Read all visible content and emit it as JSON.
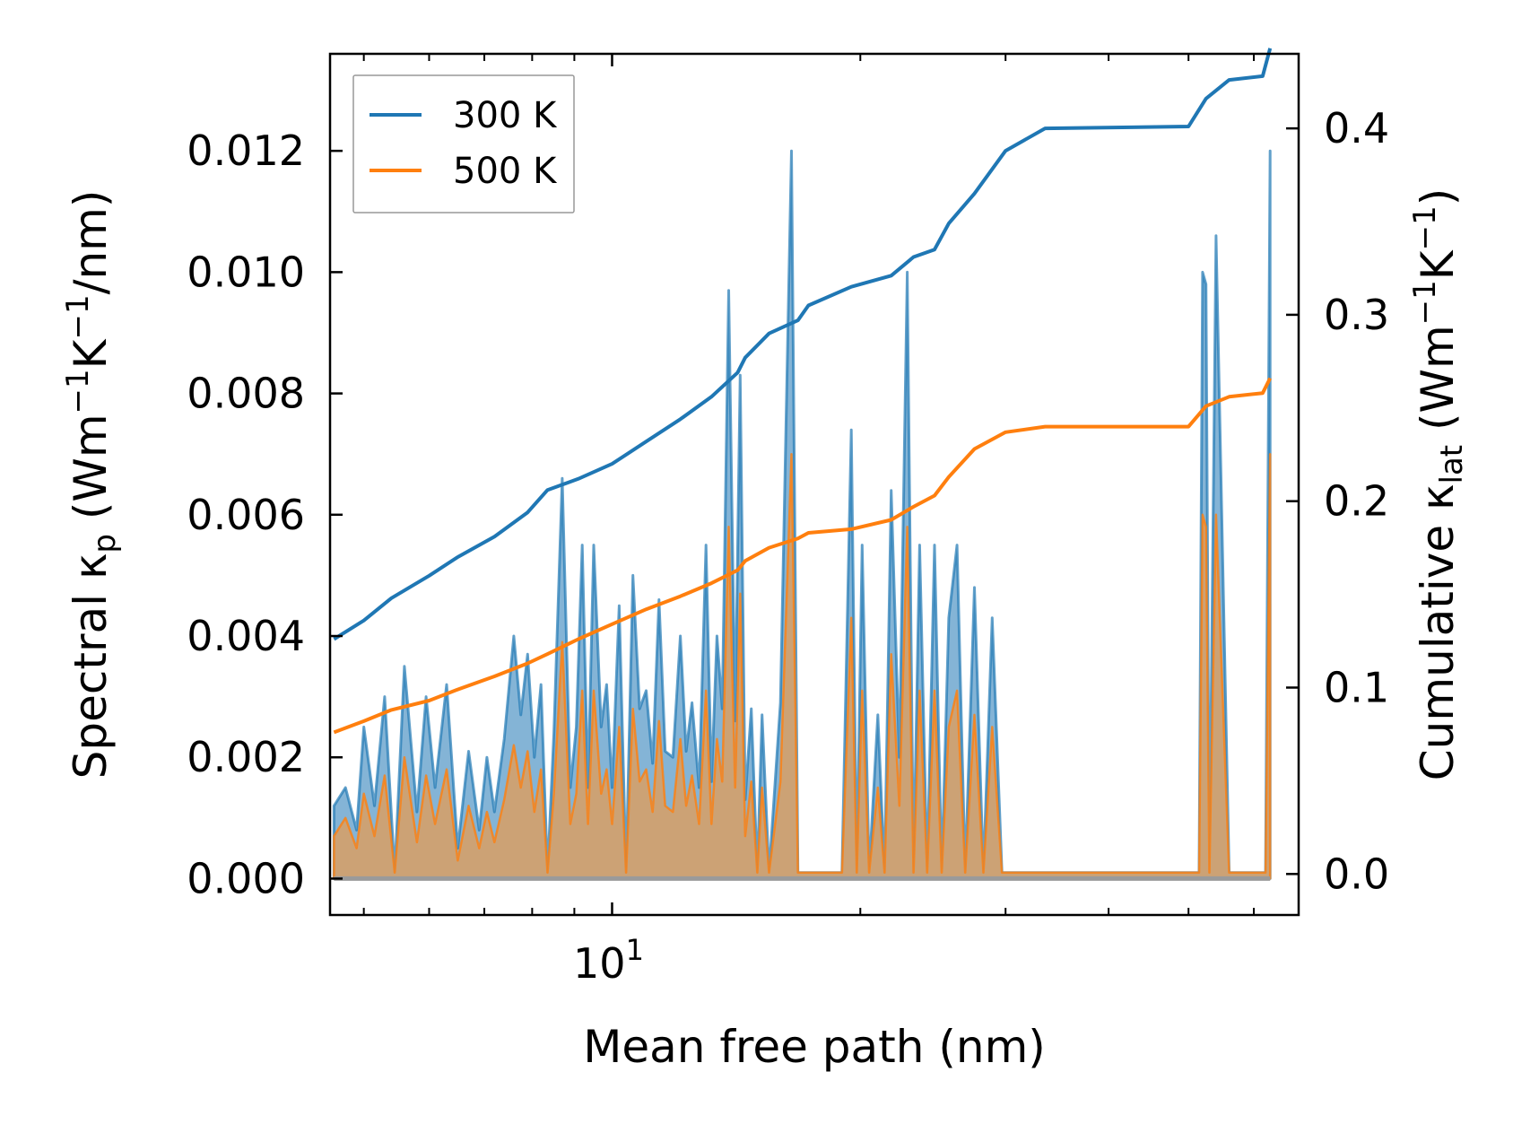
{
  "chart_data": {
    "type": "line",
    "x_scale": "log",
    "xlabel": "Mean free path (nm)",
    "xlim": [
      4.55,
      68
    ],
    "x_ticks": [
      {
        "value": 10,
        "base": "10",
        "exp": "1"
      }
    ],
    "ylabel_left": {
      "pre": "Spectral κ",
      "sub": "p",
      "post": " (Wm",
      "sup1": "−1",
      "mid": "K",
      "sup2": "−1",
      "end": "/nm)"
    },
    "ylabel_right": {
      "pre": "Cumulative κ",
      "sub": "lat",
      "post": " (Wm",
      "sup1": "−1",
      "mid": "K",
      "sup2": "−1",
      "end": ")"
    },
    "ylim_left": [
      -0.0006,
      0.0136
    ],
    "ylim_right": [
      -0.022,
      0.44
    ],
    "yticks_left": [
      "0.000",
      "0.002",
      "0.004",
      "0.006",
      "0.008",
      "0.010",
      "0.012"
    ],
    "yticks_right": [
      "0.0",
      "0.1",
      "0.2",
      "0.3",
      "0.4"
    ],
    "legend": {
      "position": "upper left",
      "entries": [
        "300 K",
        "500 K"
      ]
    },
    "colors": {
      "300 K": "#1f77b4",
      "500 K": "#ff7f0e",
      "fill_300": "#1f77b4",
      "fill_500": "#d4a06a"
    },
    "series": [
      {
        "name": "300 K",
        "axis": "right",
        "kind": "cumulative",
        "x": [
          4.6,
          5.0,
          5.4,
          6.0,
          6.5,
          7.2,
          7.9,
          8.35,
          9.1,
          10.0,
          11.0,
          12.1,
          13.2,
          14.2,
          14.5,
          15.5,
          16.8,
          17.3,
          19.5,
          21.8,
          23.2,
          24.6,
          25.6,
          27.5,
          30.0,
          33.5,
          50.0,
          52.5,
          56.0,
          61.5,
          62.8
        ]
      },
      {
        "name": "500 K",
        "axis": "right",
        "kind": "cumulative",
        "x": [
          4.6,
          5.0,
          5.4,
          6.0,
          6.5,
          7.2,
          7.9,
          8.35,
          9.1,
          10.0,
          11.0,
          12.1,
          13.2,
          14.2,
          14.5,
          15.5,
          16.8,
          17.3,
          19.5,
          21.8,
          23.2,
          24.6,
          25.6,
          27.5,
          30.0,
          33.5,
          50.0,
          52.5,
          56.0,
          61.5,
          62.8
        ]
      }
    ],
    "cumulative_300K": [
      0.126,
      0.136,
      0.148,
      0.16,
      0.17,
      0.181,
      0.194,
      0.206,
      0.212,
      0.22,
      0.232,
      0.244,
      0.256,
      0.269,
      0.277,
      0.29,
      0.297,
      0.305,
      0.315,
      0.321,
      0.331,
      0.335,
      0.349,
      0.365,
      0.388,
      0.4,
      0.401,
      0.416,
      0.426,
      0.428,
      0.443
    ],
    "cumulative_500K": [
      0.076,
      0.082,
      0.088,
      0.093,
      0.099,
      0.106,
      0.113,
      0.118,
      0.126,
      0.134,
      0.142,
      0.149,
      0.156,
      0.163,
      0.168,
      0.175,
      0.18,
      0.183,
      0.185,
      0.19,
      0.197,
      0.203,
      0.213,
      0.228,
      0.237,
      0.24,
      0.24,
      0.251,
      0.256,
      0.258,
      0.266
    ],
    "spectral_x": [
      4.6,
      4.75,
      4.9,
      5.0,
      5.15,
      5.3,
      5.45,
      5.6,
      5.8,
      5.95,
      6.1,
      6.3,
      6.5,
      6.7,
      6.9,
      7.05,
      7.2,
      7.4,
      7.6,
      7.75,
      7.9,
      8.05,
      8.2,
      8.35,
      8.5,
      8.7,
      8.9,
      9.05,
      9.2,
      9.35,
      9.5,
      9.7,
      9.85,
      10.0,
      10.2,
      10.4,
      10.6,
      10.8,
      11.0,
      11.2,
      11.4,
      11.6,
      11.85,
      12.1,
      12.3,
      12.5,
      12.75,
      13.0,
      13.2,
      13.4,
      13.6,
      13.85,
      14.1,
      14.3,
      14.5,
      14.75,
      15.0,
      15.2,
      15.5,
      16.0,
      16.5,
      16.8,
      17.1,
      17.4,
      18.0,
      19.0,
      19.5,
      19.8,
      20.1,
      20.5,
      21.0,
      21.4,
      21.8,
      22.3,
      22.8,
      23.2,
      23.6,
      24.1,
      24.6,
      25.1,
      25.6,
      26.2,
      26.8,
      27.5,
      28.2,
      28.9,
      29.7,
      30.4,
      31.5,
      33.5,
      34.0,
      49.5,
      50.0,
      50.5,
      51.0,
      51.5,
      52.0,
      52.5,
      53.0,
      54.0,
      56.0,
      57.0,
      61.5,
      62.0,
      62.8
    ],
    "spectral_300K": [
      0.0012,
      0.0015,
      0.0008,
      0.0025,
      0.0012,
      0.003,
      0.0001,
      0.0035,
      0.0011,
      0.003,
      0.0015,
      0.0032,
      0.0005,
      0.0021,
      0.0008,
      0.002,
      0.0011,
      0.0023,
      0.004,
      0.0027,
      0.0037,
      0.002,
      0.0032,
      0.0001,
      0.0024,
      0.0066,
      0.0015,
      0.0025,
      0.0055,
      0.0015,
      0.0055,
      0.0025,
      0.0032,
      0.0015,
      0.0045,
      0.0001,
      0.005,
      0.0028,
      0.0031,
      0.0019,
      0.0046,
      0.0021,
      0.002,
      0.004,
      0.0021,
      0.0029,
      0.0015,
      0.0055,
      0.0016,
      0.004,
      0.0028,
      0.0097,
      0.0026,
      0.0083,
      0.0013,
      0.0028,
      0.0001,
      0.0027,
      0.0001,
      0.0029,
      0.012,
      0.0001,
      0.0001,
      0.0001,
      0.0001,
      0.0001,
      0.0074,
      0.0001,
      0.0055,
      0.0001,
      0.0027,
      0.0001,
      0.0064,
      0.002,
      0.01,
      0.0001,
      0.0055,
      0.0001,
      0.0055,
      0.0001,
      0.0043,
      0.0055,
      0.0001,
      0.0048,
      0.0001,
      0.0043,
      0.0001,
      0.0001,
      0.0001,
      0.0001,
      0.0001,
      0.0001,
      0.0001,
      0.0001,
      0.0001,
      0.0001,
      0.01,
      0.0098,
      0.0001,
      0.0106,
      0.0001,
      0.0001,
      0.0001,
      0.0001,
      0.012
    ],
    "spectral_500K": [
      0.0007,
      0.001,
      0.0005,
      0.0014,
      0.0007,
      0.0017,
      0.0001,
      0.002,
      0.0006,
      0.0017,
      0.0009,
      0.0018,
      0.0003,
      0.0012,
      0.0005,
      0.0011,
      0.0006,
      0.0013,
      0.0022,
      0.0015,
      0.0021,
      0.0011,
      0.0018,
      0.0001,
      0.0014,
      0.0039,
      0.0009,
      0.0014,
      0.0031,
      0.0009,
      0.0031,
      0.0014,
      0.0018,
      0.0009,
      0.0025,
      0.0001,
      0.0028,
      0.0016,
      0.0018,
      0.0011,
      0.0026,
      0.0012,
      0.0011,
      0.0023,
      0.0012,
      0.0017,
      0.0009,
      0.0031,
      0.0009,
      0.0023,
      0.0016,
      0.0058,
      0.0015,
      0.0047,
      0.0007,
      0.0016,
      0.0001,
      0.0015,
      0.0001,
      0.0016,
      0.007,
      0.0001,
      0.0001,
      0.0001,
      0.0001,
      0.0001,
      0.0043,
      0.0001,
      0.0031,
      0.0001,
      0.0015,
      0.0001,
      0.0037,
      0.0012,
      0.0058,
      0.0001,
      0.0031,
      0.0001,
      0.0031,
      0.0001,
      0.0025,
      0.0031,
      0.0001,
      0.0027,
      0.0001,
      0.0025,
      0.0001,
      0.0001,
      0.0001,
      0.0001,
      0.0001,
      0.0001,
      0.0001,
      0.0001,
      0.0001,
      0.0001,
      0.006,
      0.0058,
      0.0001,
      0.006,
      0.0001,
      0.0001,
      0.0001,
      0.0001,
      0.007
    ]
  }
}
